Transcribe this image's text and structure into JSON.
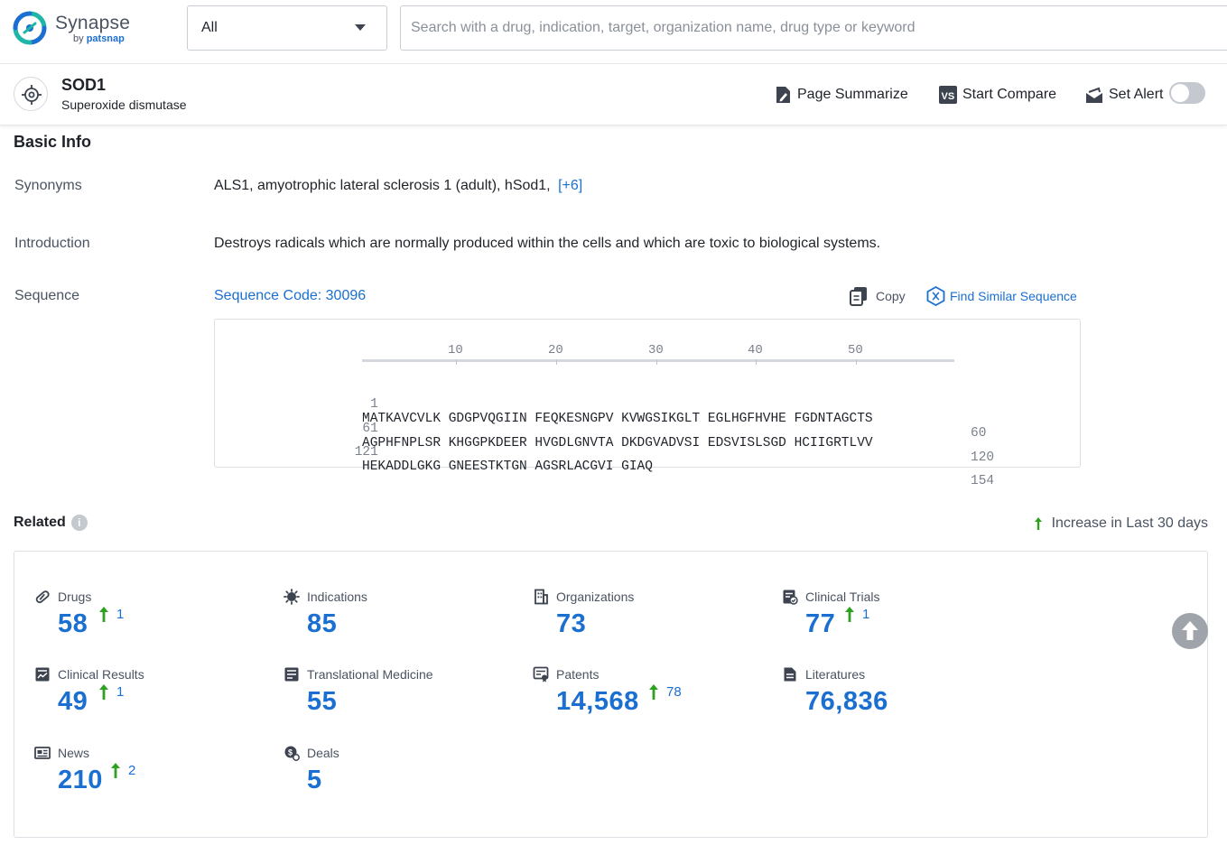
{
  "header": {
    "logo_name": "Synapse",
    "logo_by": "by",
    "logo_brand": "patsnap",
    "scope_select": "All",
    "search_placeholder": "Search with a drug, indication, target, organization name, drug type or keyword"
  },
  "target": {
    "name": "SOD1",
    "full_name": "Superoxide dismutase",
    "actions": {
      "summarize": "Page Summarize",
      "compare": "Start Compare",
      "alert": "Set Alert",
      "alert_on": false
    }
  },
  "basic_info": {
    "title": "Basic Info",
    "synonyms_label": "Synonyms",
    "synonyms": "ALS1,  amyotrophic lateral sclerosis 1 (adult),  hSod1,",
    "synonyms_more": "[+6]",
    "introduction_label": "Introduction",
    "introduction": "Destroys radicals which are normally produced within the cells and which are toxic to biological systems.",
    "sequence_label": "Sequence",
    "sequence_code": "Sequence Code: 30096",
    "copy_label": "Copy",
    "find_similar_label": "Find Similar Sequence",
    "ruler": [
      "10",
      "20",
      "30",
      "40",
      "50"
    ],
    "rows": [
      {
        "start": "1",
        "seq": "MATKAVCVLK GDGPVQGIIN FEQKESNGPV KVWGSIKGLT EGLHGFHVHE FGDNTAGCTS",
        "end": "60"
      },
      {
        "start": "61",
        "seq": "AGPHFNPLSR KHGGPKDEER HVGDLGNVTA DKDGVADVSI EDSVISLSGD HCIIGRTLVV",
        "end": "120"
      },
      {
        "start": "121",
        "seq": "HEKADDLGKG GNEESTKTGN AGSRLACGVI GIAQ",
        "end": "154"
      }
    ]
  },
  "related": {
    "title": "Related",
    "info_icon": "i",
    "legend": "Increase in Last 30 days",
    "stats": [
      {
        "label": "Drugs",
        "value": "58",
        "increase": "1"
      },
      {
        "label": "Indications",
        "value": "85",
        "increase": ""
      },
      {
        "label": "Organizations",
        "value": "73",
        "increase": ""
      },
      {
        "label": "Clinical Trials",
        "value": "77",
        "increase": "1"
      },
      {
        "label": "Clinical Results",
        "value": "49",
        "increase": "1"
      },
      {
        "label": "Translational Medicine",
        "value": "55",
        "increase": ""
      },
      {
        "label": "Patents",
        "value": "14,568",
        "increase": "78"
      },
      {
        "label": "Literatures",
        "value": "76,836",
        "increase": ""
      },
      {
        "label": "News",
        "value": "210",
        "increase": "2"
      },
      {
        "label": "Deals",
        "value": "5",
        "increase": ""
      }
    ]
  },
  "colors": {
    "accent": "#1b6fd1",
    "increase": "#2ea121",
    "text": "#1f2329",
    "muted": "#4a5361"
  }
}
